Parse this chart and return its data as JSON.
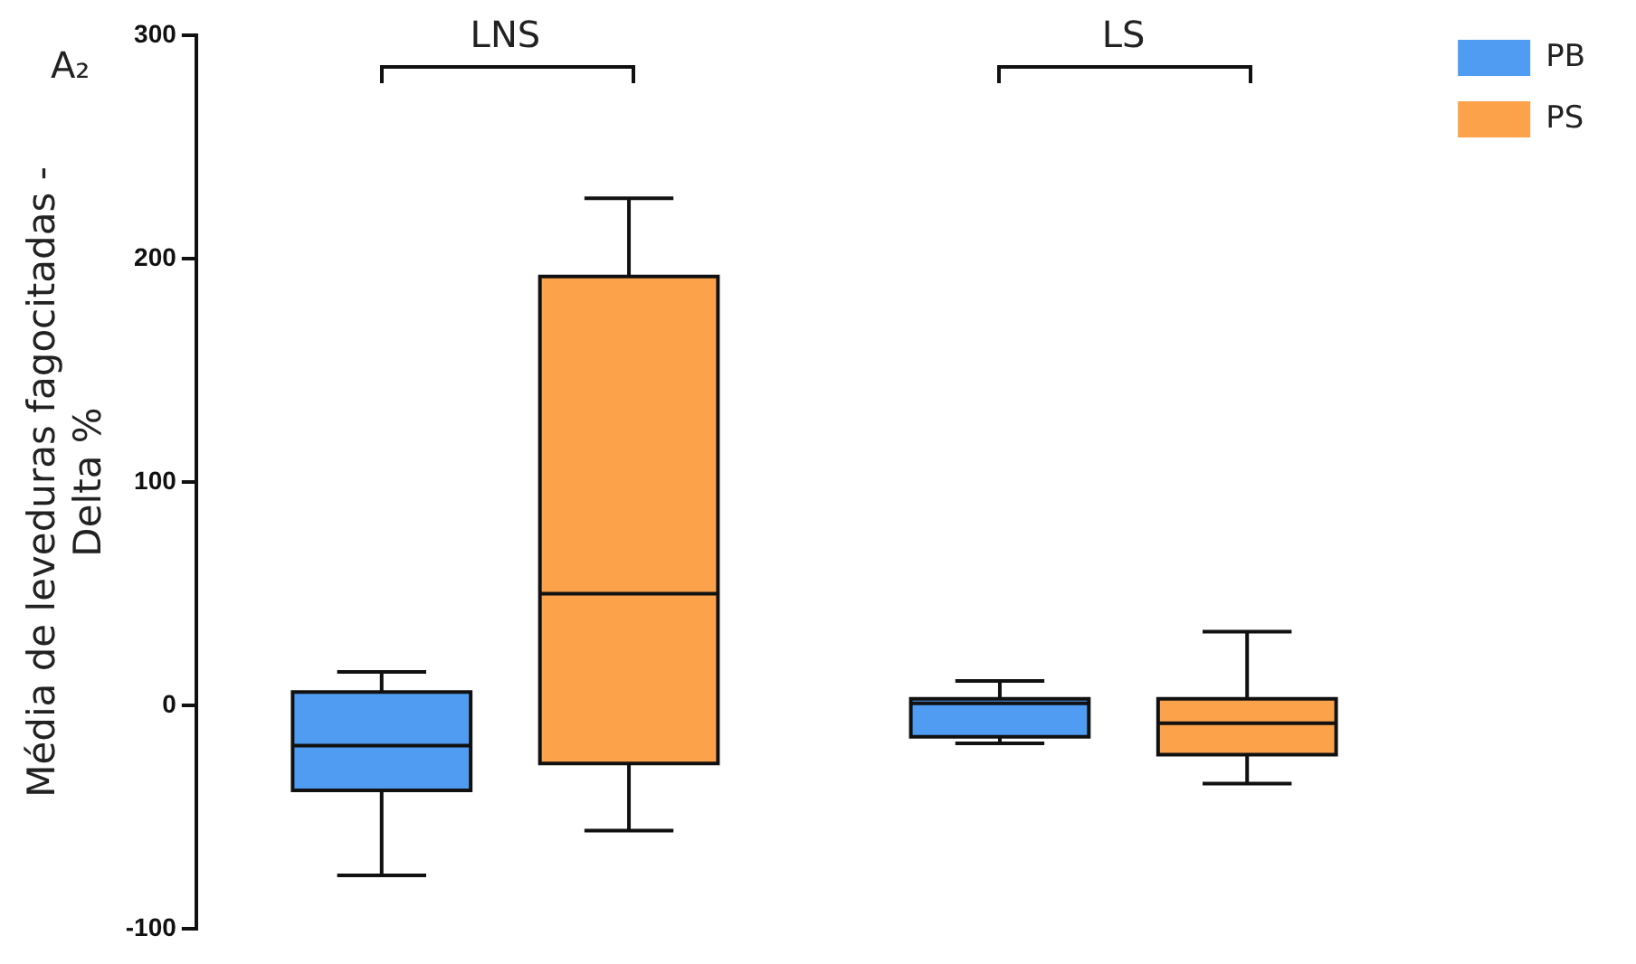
{
  "chart_data": {
    "type": "box",
    "categories": [
      "LNS",
      "LS"
    ],
    "ylabel": "Média de leveduras fagocitadas - Delta %",
    "ylim": [
      -100,
      300
    ],
    "yticks": [
      -100,
      0,
      100,
      200,
      300
    ],
    "legend": "top right",
    "annotations": [
      "A₂"
    ],
    "series": [
      {
        "name": "PB",
        "color": "#4f9cf2",
        "boxes": [
          {
            "low": -76,
            "q1": -38,
            "median": -18,
            "q3": 6,
            "high": 15
          },
          {
            "low": -17,
            "q1": -14,
            "median": 1,
            "q3": 3,
            "high": 11
          }
        ]
      },
      {
        "name": "PS",
        "color": "#fca24a",
        "boxes": [
          {
            "low": -56,
            "q1": -26,
            "median": 50,
            "q3": 192,
            "high": 227
          },
          {
            "low": -35,
            "q1": -22,
            "median": -8,
            "q3": 3,
            "high": 33
          }
        ]
      }
    ]
  }
}
